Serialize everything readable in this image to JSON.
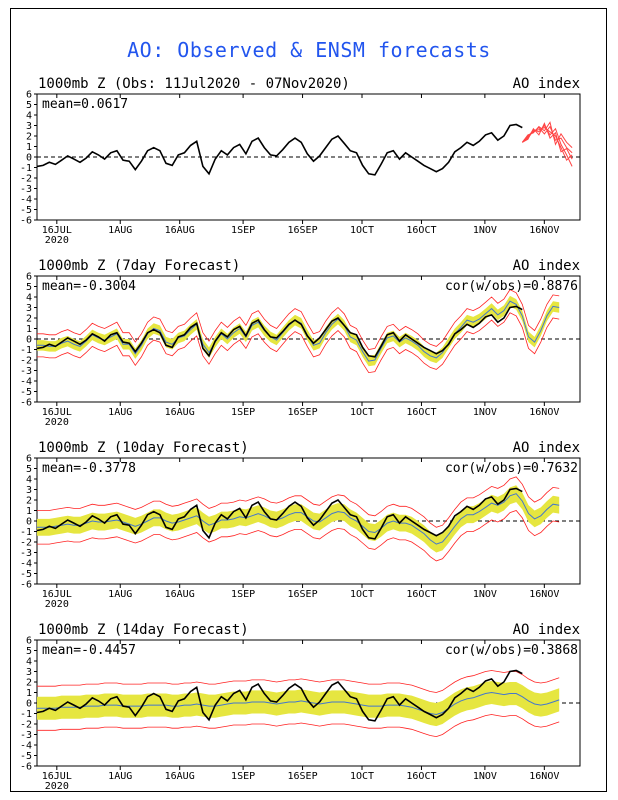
{
  "page_title": "AO: Observed & ENSM forecasts",
  "colors": {
    "title": "#2255ee",
    "observed": "#000000",
    "ensemble_member": "#ff4444",
    "ensemble_mean": "#4477cc",
    "spread_fill": "#e6e640",
    "envelope": "#ff2222"
  },
  "x_tick_labels": [
    "16JUL",
    "1AUG",
    "16AUG",
    "1SEP",
    "16SEP",
    "1OCT",
    "16OCT",
    "1NOV",
    "16NOV"
  ],
  "x_year_label": "2020",
  "y_tick_labels": [
    "6",
    "5",
    "4",
    "3",
    "2",
    "1",
    "0",
    "-1",
    "-2",
    "-3",
    "-4",
    "-5",
    "-6"
  ],
  "chart_data": [
    {
      "type": "line",
      "title": "1000mb Z (Obs: 11Jul2020 - 07Nov2020)",
      "index_label": "AO index",
      "mean_label": "mean=0.0617",
      "cor_label": "",
      "x_start": "2020-07-11",
      "ylim": [
        -6,
        6
      ],
      "zero_line": "dashed",
      "observed": [
        -0.9,
        -0.8,
        -0.5,
        -0.7,
        -0.3,
        0.1,
        -0.2,
        -0.5,
        -0.1,
        0.5,
        0.2,
        -0.2,
        0.4,
        0.6,
        -0.3,
        -0.4,
        -1.2,
        -0.4,
        0.6,
        0.9,
        0.6,
        -0.6,
        -0.8,
        0.2,
        0.4,
        1.1,
        1.5,
        -0.9,
        -1.6,
        -0.2,
        0.6,
        0.2,
        0.9,
        1.2,
        0.3,
        1.5,
        1.8,
        0.9,
        0.2,
        0.1,
        0.7,
        1.4,
        1.8,
        1.4,
        0.3,
        -0.4,
        0.1,
        0.9,
        1.7,
        2.0,
        1.3,
        0.6,
        0.4,
        -0.8,
        -1.6,
        -1.7,
        -0.7,
        0.4,
        0.6,
        -0.2,
        0.4,
        0.0,
        -0.4,
        -0.8,
        -1.1,
        -1.4,
        -1.1,
        -0.5,
        0.5,
        0.9,
        1.4,
        1.1,
        1.5,
        2.1,
        2.3,
        1.6,
        2.0,
        3.0,
        3.1,
        2.8
      ],
      "forecast_members": [
        [
          1.4,
          1.9,
          2.6,
          2.4,
          3.0,
          2.1,
          2.7,
          1.2,
          0.2,
          -0.9
        ],
        [
          1.4,
          2.0,
          2.4,
          2.8,
          2.2,
          2.9,
          1.6,
          1.8,
          0.9,
          0.4
        ],
        [
          1.4,
          1.7,
          2.7,
          2.1,
          3.2,
          1.8,
          2.3,
          0.5,
          0.8,
          -0.2
        ],
        [
          1.4,
          2.1,
          2.3,
          2.9,
          2.5,
          3.3,
          1.2,
          2.2,
          1.4,
          0.9
        ],
        [
          1.4,
          1.8,
          2.5,
          2.6,
          2.8,
          2.4,
          2.0,
          0.9,
          -0.3,
          0.2
        ]
      ]
    },
    {
      "type": "line",
      "title": "1000mb Z (7day Forecast)",
      "index_label": "AO index",
      "mean_label": "mean=-0.3004",
      "cor_label": "cor(w/obs)=0.8876",
      "x_start": "2020-07-11",
      "ylim": [
        -6,
        6
      ],
      "spread": 0.5,
      "envelope": 1.1,
      "forecast_mean": [
        -0.6,
        -0.6,
        -0.7,
        -0.7,
        -0.4,
        -0.2,
        -0.5,
        -0.7,
        -0.2,
        0.4,
        0.1,
        -0.1,
        0.2,
        0.5,
        -0.5,
        -0.5,
        -1.4,
        -0.6,
        0.5,
        1.0,
        0.8,
        -0.3,
        -0.5,
        0.1,
        0.3,
        0.9,
        1.4,
        -0.5,
        -1.3,
        -0.3,
        0.5,
        0.0,
        0.6,
        1.0,
        0.2,
        1.3,
        1.6,
        0.8,
        0.2,
        -0.1,
        0.6,
        1.3,
        1.8,
        1.5,
        0.4,
        -0.6,
        -0.4,
        0.6,
        1.4,
        1.9,
        1.3,
        0.2,
        -0.1,
        -1.2,
        -2.1,
        -2.0,
        -0.9,
        0.1,
        0.3,
        -0.3,
        0.1,
        -0.2,
        -0.6,
        -1.2,
        -1.6,
        -1.8,
        -1.3,
        -0.4,
        0.5,
        1.1,
        1.8,
        1.6,
        1.9,
        2.4,
        2.9,
        2.3,
        2.7,
        3.6,
        3.3,
        2.2,
        0.2,
        -0.3,
        0.8,
        2.2,
        3.1,
        3.0
      ],
      "observed": [
        -0.9,
        -0.8,
        -0.5,
        -0.7,
        -0.3,
        0.1,
        -0.2,
        -0.5,
        -0.1,
        0.5,
        0.2,
        -0.2,
        0.4,
        0.6,
        -0.3,
        -0.4,
        -1.2,
        -0.4,
        0.6,
        0.9,
        0.6,
        -0.6,
        -0.8,
        0.2,
        0.4,
        1.1,
        1.5,
        -0.9,
        -1.6,
        -0.2,
        0.6,
        0.2,
        0.9,
        1.2,
        0.3,
        1.5,
        1.8,
        0.9,
        0.2,
        0.1,
        0.7,
        1.4,
        1.8,
        1.4,
        0.3,
        -0.4,
        0.1,
        0.9,
        1.7,
        2.0,
        1.3,
        0.6,
        0.4,
        -0.8,
        -1.6,
        -1.7,
        -0.7,
        0.4,
        0.6,
        -0.2,
        0.4,
        0.0,
        -0.4,
        -0.8,
        -1.1,
        -1.4,
        -1.1,
        -0.5,
        0.5,
        0.9,
        1.4,
        1.1,
        1.5,
        2.1,
        2.3,
        1.6,
        2.0,
        3.0,
        3.1,
        2.8
      ]
    },
    {
      "type": "line",
      "title": "1000mb Z (10day Forecast)",
      "index_label": "AO index",
      "mean_label": "mean=-0.3778",
      "cor_label": "cor(w/obs)=0.7632",
      "x_start": "2020-07-11",
      "ylim": [
        -6,
        6
      ],
      "spread": 0.8,
      "envelope": 1.6,
      "forecast_mean": [
        -0.6,
        -0.6,
        -0.6,
        -0.5,
        -0.4,
        -0.3,
        -0.4,
        -0.4,
        -0.2,
        0.0,
        -0.1,
        -0.1,
        0.0,
        0.1,
        -0.1,
        -0.3,
        -0.5,
        -0.3,
        0.0,
        0.3,
        0.3,
        0.0,
        -0.2,
        -0.1,
        0.1,
        0.3,
        0.5,
        0.0,
        -0.4,
        -0.2,
        0.1,
        0.1,
        0.2,
        0.4,
        0.3,
        0.5,
        0.7,
        0.5,
        0.2,
        0.1,
        0.3,
        0.6,
        0.8,
        0.8,
        0.4,
        0.0,
        -0.1,
        0.3,
        0.7,
        0.9,
        0.8,
        0.3,
        0.0,
        -0.5,
        -1.0,
        -1.1,
        -0.7,
        -0.2,
        0.0,
        -0.2,
        -0.2,
        -0.4,
        -0.8,
        -1.2,
        -1.8,
        -2.2,
        -2.0,
        -1.3,
        -0.5,
        0.2,
        0.6,
        0.6,
        0.9,
        1.3,
        1.7,
        1.5,
        1.8,
        2.4,
        2.6,
        1.9,
        0.7,
        0.2,
        0.5,
        1.1,
        1.6,
        1.5
      ],
      "observed": [
        -0.9,
        -0.8,
        -0.5,
        -0.7,
        -0.3,
        0.1,
        -0.2,
        -0.5,
        -0.1,
        0.5,
        0.2,
        -0.2,
        0.4,
        0.6,
        -0.3,
        -0.4,
        -1.2,
        -0.4,
        0.6,
        0.9,
        0.6,
        -0.6,
        -0.8,
        0.2,
        0.4,
        1.1,
        1.5,
        -0.9,
        -1.6,
        -0.2,
        0.6,
        0.2,
        0.9,
        1.2,
        0.3,
        1.5,
        1.8,
        0.9,
        0.2,
        0.1,
        0.7,
        1.4,
        1.8,
        1.4,
        0.3,
        -0.4,
        0.1,
        0.9,
        1.7,
        2.0,
        1.3,
        0.6,
        0.4,
        -0.8,
        -1.6,
        -1.7,
        -0.7,
        0.4,
        0.6,
        -0.2,
        0.4,
        0.0,
        -0.4,
        -0.8,
        -1.1,
        -1.4,
        -1.1,
        -0.5,
        0.5,
        0.9,
        1.4,
        1.1,
        1.5,
        2.1,
        2.3,
        1.6,
        2.0,
        3.0,
        3.1,
        2.8
      ]
    },
    {
      "type": "line",
      "title": "1000mb Z (14day Forecast)",
      "index_label": "AO index",
      "mean_label": "mean=-0.4457",
      "cor_label": "cor(w/obs)=0.3868",
      "x_start": "2020-07-11",
      "ylim": [
        -6,
        6
      ],
      "spread": 1.1,
      "envelope": 2.1,
      "forecast_mean": [
        -0.5,
        -0.5,
        -0.5,
        -0.5,
        -0.4,
        -0.4,
        -0.4,
        -0.4,
        -0.3,
        -0.3,
        -0.3,
        -0.2,
        -0.2,
        -0.2,
        -0.3,
        -0.3,
        -0.3,
        -0.3,
        -0.2,
        -0.2,
        -0.2,
        -0.2,
        -0.3,
        -0.3,
        -0.2,
        -0.2,
        -0.1,
        -0.2,
        -0.3,
        -0.3,
        -0.2,
        -0.1,
        0.0,
        0.0,
        0.0,
        0.1,
        0.1,
        0.1,
        0.0,
        -0.1,
        0.0,
        0.1,
        0.1,
        0.2,
        0.1,
        0.0,
        -0.1,
        0.0,
        0.1,
        0.1,
        0.1,
        0.0,
        -0.1,
        -0.2,
        -0.3,
        -0.3,
        -0.3,
        -0.2,
        -0.2,
        -0.2,
        -0.3,
        -0.4,
        -0.6,
        -0.8,
        -1.0,
        -1.1,
        -0.9,
        -0.5,
        -0.1,
        0.2,
        0.4,
        0.5,
        0.7,
        0.9,
        1.0,
        0.9,
        0.8,
        0.9,
        0.9,
        0.6,
        0.2,
        -0.1,
        -0.2,
        -0.1,
        0.1,
        0.3
      ],
      "observed": [
        -0.9,
        -0.8,
        -0.5,
        -0.7,
        -0.3,
        0.1,
        -0.2,
        -0.5,
        -0.1,
        0.5,
        0.2,
        -0.2,
        0.4,
        0.6,
        -0.3,
        -0.4,
        -1.2,
        -0.4,
        0.6,
        0.9,
        0.6,
        -0.6,
        -0.8,
        0.2,
        0.4,
        1.1,
        1.5,
        -0.9,
        -1.6,
        -0.2,
        0.6,
        0.2,
        0.9,
        1.2,
        0.3,
        1.5,
        1.8,
        0.9,
        0.2,
        0.1,
        0.7,
        1.4,
        1.8,
        1.4,
        0.3,
        -0.4,
        0.1,
        0.9,
        1.7,
        2.0,
        1.3,
        0.6,
        0.4,
        -0.8,
        -1.6,
        -1.7,
        -0.7,
        0.4,
        0.6,
        -0.2,
        0.4,
        0.0,
        -0.4,
        -0.8,
        -1.1,
        -1.4,
        -1.1,
        -0.5,
        0.5,
        0.9,
        1.4,
        1.1,
        1.5,
        2.1,
        2.3,
        1.6,
        2.0,
        3.0,
        3.1,
        2.8
      ]
    }
  ]
}
